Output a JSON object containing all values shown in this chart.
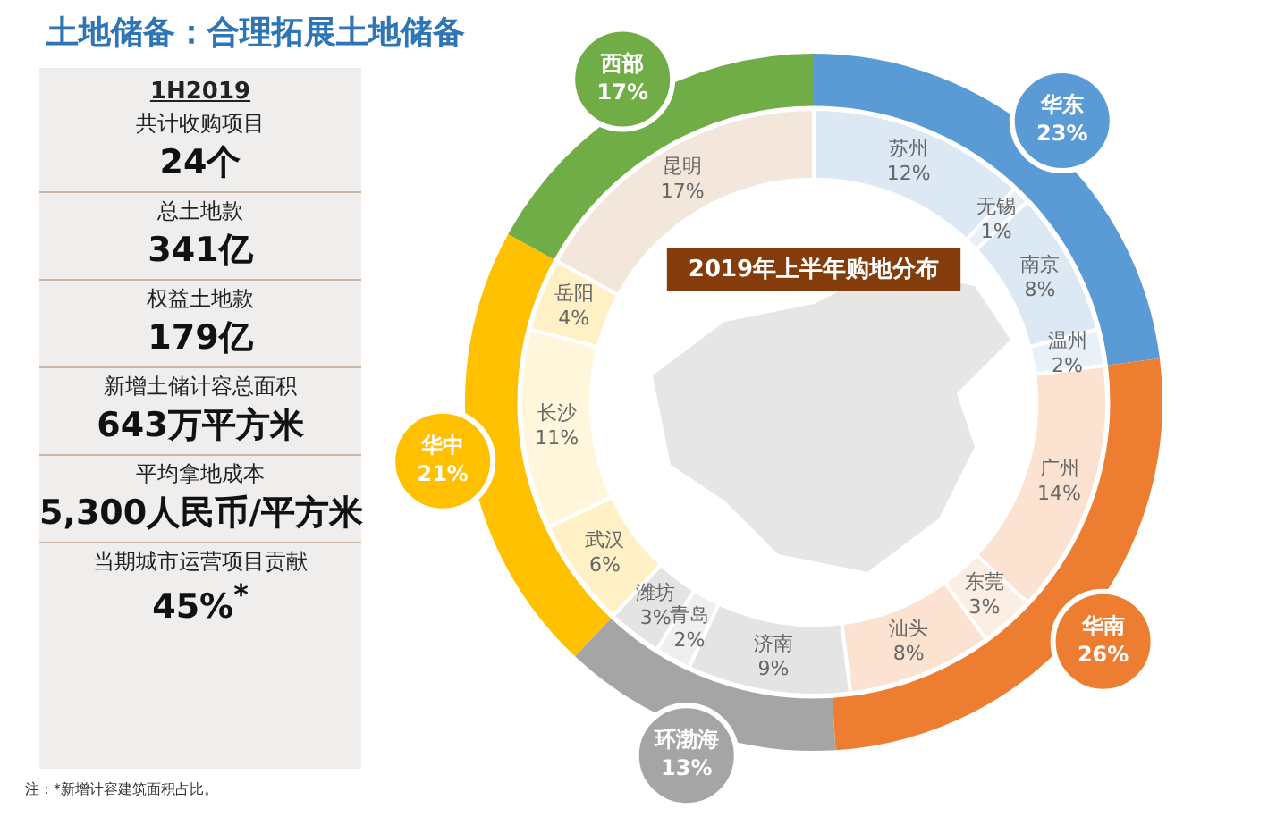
{
  "chart_data": [
    {
      "type": "other",
      "title": "土地储备：合理拓展土地储备",
      "annotations": [
        "1H2019",
        "共计收购项目",
        "24个",
        "总土地款",
        "341亿",
        "权益土地款",
        "179亿",
        "新增土储计容总面积",
        "643万平方米",
        "平均拿地成本",
        "5,300人民币/平方米",
        "当期城市运营项目贡献",
        "45%$^{*}$",
        "注：*新增计容建筑面积占比。"
      ]
    },
    {
      "type": "donut",
      "categories": [
        "华东",
        "华南",
        "环渤海",
        "华中",
        "西部"
      ],
      "values": [
        23,
        26,
        13,
        21,
        17
      ],
      "colors": [
        "#5b9bd5",
        "#ed7d31",
        "#a5a5a5",
        "#ffc000",
        "#70ad47"
      ],
      "value_labels": [
        "23%",
        "26%",
        "13%",
        "21%",
        "17%"
      ]
    },
    {
      "type": "donut",
      "title": "2019年上半年购地分布",
      "categories": [
        "苏州",
        "无锡",
        "南京",
        "温州",
        "广州",
        "东莞",
        "汕头",
        "济南",
        "青岛",
        "潍坊",
        "武汉",
        "长沙",
        "岳阳",
        "昆明"
      ],
      "values": [
        12,
        1,
        8,
        2,
        14,
        3,
        8,
        9,
        2,
        3,
        6,
        11,
        4,
        17
      ],
      "colors": [
        "#dce8f4",
        "#e8f0f8",
        "#dce8f4",
        "#e8f0f8",
        "#fbe2d1",
        "#fdeee4",
        "#fbe2d1",
        "#e4e4e4",
        "#efefef",
        "#e4e4e4",
        "#fff0c6",
        "#fff6dc",
        "#fff0c6",
        "#f3e7dc"
      ],
      "value_labels": [
        "12%",
        "1%",
        "8%",
        "2%",
        "14%",
        "3%",
        "8%",
        "9%",
        "2%",
        "3%",
        "6%",
        "11%",
        "4%",
        "17%"
      ]
    }
  ]
}
